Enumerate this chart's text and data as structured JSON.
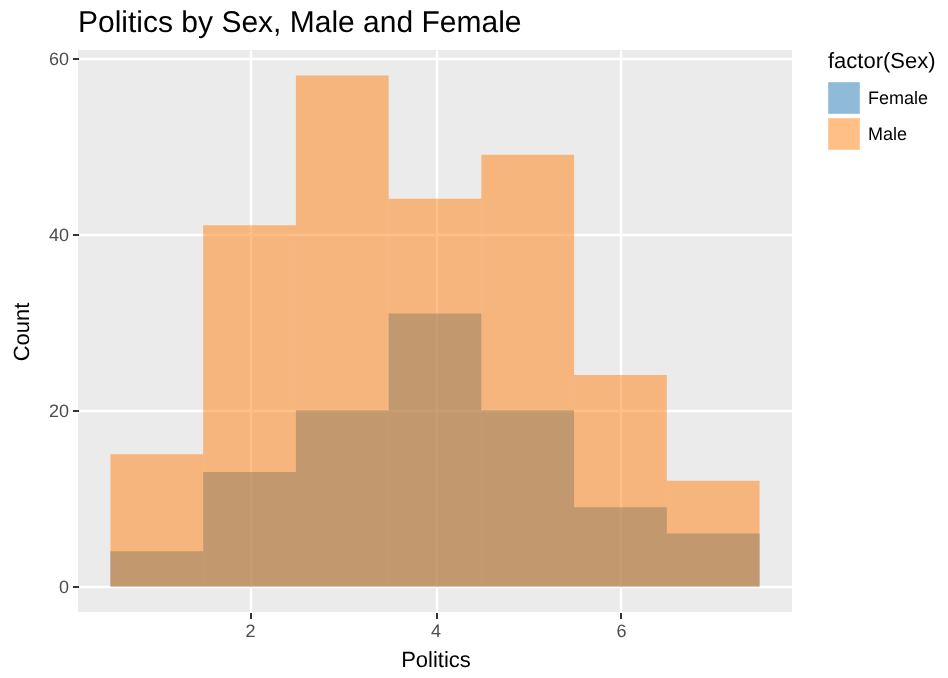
{
  "chart_data": {
    "type": "histogram",
    "title": "Politics by Sex, Male and Female",
    "xlabel": "Politics",
    "ylabel": "Count",
    "legend_title": "factor(Sex)",
    "bins": [
      0.5,
      1.5,
      2.5,
      3.5,
      4.5,
      5.5,
      6.5,
      7.5
    ],
    "series": [
      {
        "name": "Female",
        "color": "#1f77b4",
        "values": [
          4,
          13,
          20,
          31,
          20,
          9,
          6
        ]
      },
      {
        "name": "Male",
        "color": "#ff7f0e",
        "values": [
          15,
          41,
          58,
          44,
          49,
          24,
          12
        ]
      }
    ],
    "xlim": [
      0.15,
      7.85
    ],
    "xticks": [
      2,
      4,
      6
    ],
    "ylim": [
      -2.9,
      60.9
    ],
    "yticks": [
      0,
      20,
      40,
      60
    ],
    "grid": true,
    "legend": "right"
  }
}
